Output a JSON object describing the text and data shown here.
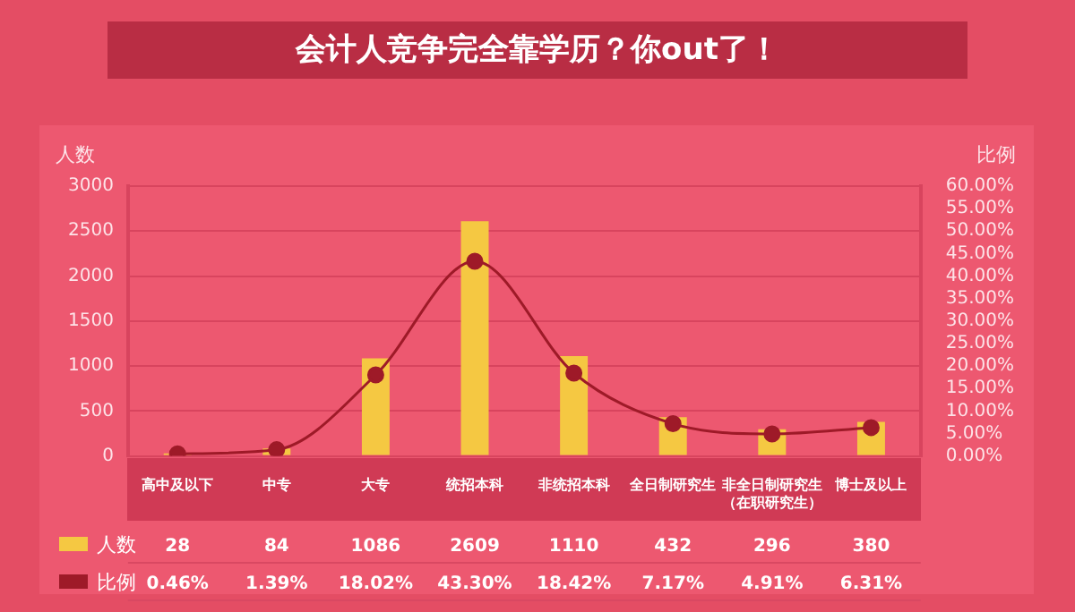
{
  "chart_data": {
    "type": "bar",
    "title": "会计人竞争完全靠学历？你out了！",
    "ylabel": "人数",
    "y2label": "比例",
    "categories": [
      "高中及以下",
      "中专",
      "大专",
      "统招本科",
      "非统招本科",
      "全日制研究生",
      "非全日制研究生（在职研究生）",
      "博士及以上"
    ],
    "series": [
      {
        "name": "人数",
        "color": "#f5c842",
        "values": [
          28,
          84,
          1086,
          2609,
          1110,
          432,
          296,
          380
        ],
        "value_labels": [
          "28",
          "84",
          "1086",
          "2609",
          "1110",
          "432",
          "296",
          "380"
        ]
      },
      {
        "name": "比例",
        "type": "line",
        "axis": "y2",
        "color": "#9e1a28",
        "values": [
          0.46,
          1.39,
          18.02,
          43.3,
          18.42,
          7.17,
          4.91,
          6.31
        ],
        "value_labels": [
          "0.46%",
          "1.39%",
          "18.02%",
          "43.30%",
          "18.42%",
          "7.17%",
          "4.91%",
          "6.31%"
        ]
      }
    ],
    "ylim": [
      0,
      3000
    ],
    "yticks": [
      0,
      500,
      1000,
      1500,
      2000,
      2500,
      3000
    ],
    "y2lim": [
      0,
      60
    ],
    "y2ticks": [
      {
        "value": 0,
        "label": "0.00%"
      },
      {
        "value": 5,
        "label": "5.00%"
      },
      {
        "value": 10,
        "label": "10.00%"
      },
      {
        "value": 15,
        "label": "15.00%"
      },
      {
        "value": 20,
        "label": "20.00%"
      },
      {
        "value": 25,
        "label": "25.00%"
      },
      {
        "value": 30,
        "label": "30.00%"
      },
      {
        "value": 35,
        "label": "35.00%"
      },
      {
        "value": 40,
        "label": "40.00%"
      },
      {
        "value": 45,
        "label": "45.00%"
      },
      {
        "value": 50,
        "label": "50.00%"
      },
      {
        "value": 55,
        "label": "55.00%"
      },
      {
        "value": 60,
        "label": "60.00%"
      }
    ],
    "grid": "y",
    "legend": "bottom left",
    "marker": "circle",
    "line_style": "solid",
    "data_labels": true
  }
}
